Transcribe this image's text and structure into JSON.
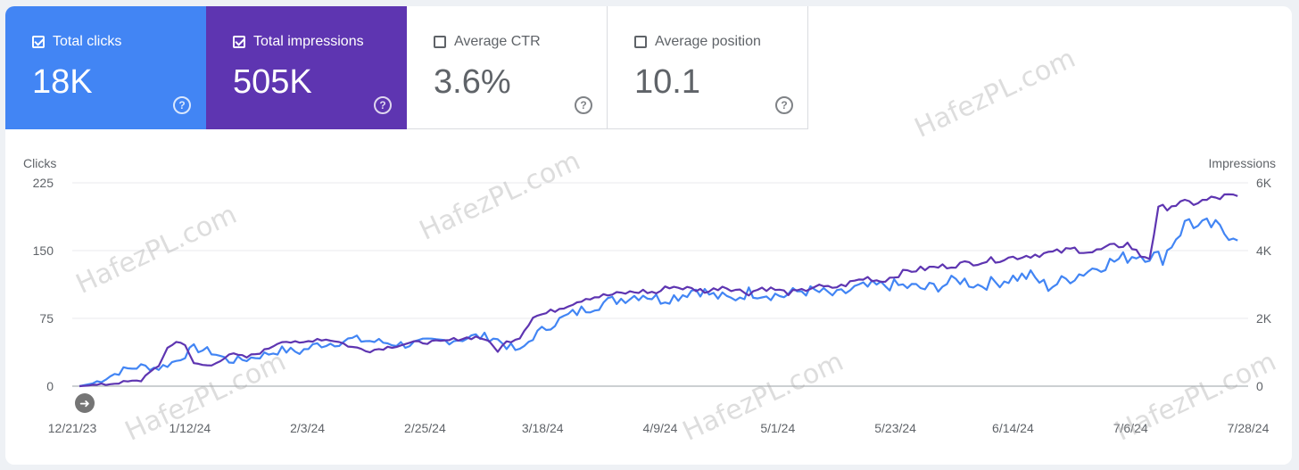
{
  "tiles": [
    {
      "label": "Total clicks",
      "value": "18K",
      "checked": true,
      "color": "#4285f4"
    },
    {
      "label": "Total impressions",
      "value": "505K",
      "checked": true,
      "color": "#5e35b1"
    },
    {
      "label": "Average CTR",
      "value": "3.6%",
      "checked": false
    },
    {
      "label": "Average position",
      "value": "10.1",
      "checked": false
    }
  ],
  "watermark": "HafezPL.com",
  "chart_data": {
    "type": "line",
    "left_axis": {
      "label": "Clicks",
      "ticks": [
        "225",
        "150",
        "75",
        "0"
      ],
      "range": [
        0,
        225
      ]
    },
    "right_axis": {
      "label": "Impressions",
      "ticks": [
        "6K",
        "4K",
        "2K",
        "0"
      ],
      "range": [
        0,
        6000
      ]
    },
    "x_ticks": [
      "12/21/23",
      "1/12/24",
      "2/3/24",
      "2/25/24",
      "3/18/24",
      "4/9/24",
      "5/1/24",
      "5/23/24",
      "6/14/24",
      "7/6/24",
      "7/28/24"
    ],
    "grid": true,
    "series": [
      {
        "name": "Total clicks",
        "axis": "left",
        "color": "#4285f4",
        "anchors": [
          [
            0,
            0
          ],
          [
            3,
            3
          ],
          [
            6,
            9
          ],
          [
            10,
            18
          ],
          [
            14,
            22
          ],
          [
            18,
            20
          ],
          [
            22,
            28
          ],
          [
            26,
            42
          ],
          [
            30,
            38
          ],
          [
            34,
            28
          ],
          [
            38,
            30
          ],
          [
            42,
            35
          ],
          [
            46,
            40
          ],
          [
            50,
            38
          ],
          [
            54,
            46
          ],
          [
            58,
            48
          ],
          [
            62,
            52
          ],
          [
            66,
            50
          ],
          [
            70,
            48
          ],
          [
            74,
            46
          ],
          [
            78,
            48
          ],
          [
            82,
            50
          ],
          [
            86,
            52
          ],
          [
            90,
            55
          ],
          [
            94,
            54
          ],
          [
            97,
            45
          ],
          [
            100,
            38
          ],
          [
            103,
            55
          ],
          [
            107,
            68
          ],
          [
            111,
            78
          ],
          [
            115,
            86
          ],
          [
            119,
            92
          ],
          [
            124,
            98
          ],
          [
            128,
            102
          ],
          [
            132,
            96
          ],
          [
            136,
            100
          ],
          [
            140,
            108
          ],
          [
            144,
            100
          ],
          [
            148,
            96
          ],
          [
            152,
            104
          ],
          [
            156,
            102
          ],
          [
            160,
            100
          ],
          [
            164,
            106
          ],
          [
            168,
            104
          ],
          [
            172,
            100
          ],
          [
            176,
            108
          ],
          [
            180,
            110
          ],
          [
            184,
            112
          ],
          [
            188,
            110
          ],
          [
            192,
            108
          ],
          [
            196,
            112
          ],
          [
            200,
            118
          ],
          [
            204,
            112
          ],
          [
            208,
            115
          ],
          [
            212,
            120
          ],
          [
            216,
            122
          ],
          [
            220,
            110
          ],
          [
            224,
            118
          ],
          [
            228,
            126
          ],
          [
            232,
            134
          ],
          [
            236,
            140
          ],
          [
            240,
            146
          ],
          [
            243,
            145
          ],
          [
            246,
            142
          ],
          [
            249,
            165
          ],
          [
            252,
            185
          ],
          [
            254,
            175
          ],
          [
            257,
            178
          ],
          [
            260,
            170
          ],
          [
            263,
            168
          ]
        ],
        "noise": 8
      },
      {
        "name": "Total impressions",
        "axis": "right",
        "color": "#5e35b1",
        "anchors": [
          [
            0,
            0
          ],
          [
            6,
            50
          ],
          [
            10,
            120
          ],
          [
            14,
            160
          ],
          [
            16,
            450
          ],
          [
            18,
            550
          ],
          [
            20,
            1150
          ],
          [
            22,
            1300
          ],
          [
            24,
            1250
          ],
          [
            26,
            650
          ],
          [
            30,
            600
          ],
          [
            34,
            950
          ],
          [
            38,
            850
          ],
          [
            42,
            1050
          ],
          [
            46,
            1350
          ],
          [
            50,
            1250
          ],
          [
            54,
            1400
          ],
          [
            58,
            1350
          ],
          [
            62,
            1150
          ],
          [
            66,
            1050
          ],
          [
            70,
            1150
          ],
          [
            74,
            1250
          ],
          [
            78,
            1300
          ],
          [
            82,
            1300
          ],
          [
            86,
            1400
          ],
          [
            90,
            1450
          ],
          [
            92,
            1400
          ],
          [
            95,
            1050
          ],
          [
            97,
            1300
          ],
          [
            100,
            1450
          ],
          [
            103,
            2050
          ],
          [
            106,
            2150
          ],
          [
            109,
            2300
          ],
          [
            112,
            2450
          ],
          [
            115,
            2600
          ],
          [
            118,
            2650
          ],
          [
            121,
            2700
          ],
          [
            124,
            2750
          ],
          [
            128,
            2800
          ],
          [
            131,
            2750
          ],
          [
            134,
            2950
          ],
          [
            137,
            2900
          ],
          [
            140,
            2850
          ],
          [
            143,
            2800
          ],
          [
            146,
            2950
          ],
          [
            149,
            2850
          ],
          [
            152,
            2750
          ],
          [
            155,
            2900
          ],
          [
            158,
            2850
          ],
          [
            161,
            2750
          ],
          [
            164,
            2800
          ],
          [
            167,
            2950
          ],
          [
            170,
            2900
          ],
          [
            173,
            2950
          ],
          [
            176,
            3100
          ],
          [
            179,
            3200
          ],
          [
            182,
            3100
          ],
          [
            185,
            3250
          ],
          [
            188,
            3400
          ],
          [
            191,
            3450
          ],
          [
            194,
            3500
          ],
          [
            197,
            3550
          ],
          [
            200,
            3600
          ],
          [
            203,
            3650
          ],
          [
            206,
            3700
          ],
          [
            209,
            3750
          ],
          [
            212,
            3800
          ],
          [
            215,
            3850
          ],
          [
            218,
            3900
          ],
          [
            222,
            3950
          ],
          [
            226,
            4050
          ],
          [
            230,
            3950
          ],
          [
            234,
            4100
          ],
          [
            238,
            4200
          ],
          [
            241,
            3850
          ],
          [
            243,
            3800
          ],
          [
            245,
            5200
          ],
          [
            248,
            5350
          ],
          [
            252,
            5400
          ],
          [
            255,
            5450
          ],
          [
            258,
            5550
          ],
          [
            261,
            5600
          ],
          [
            263,
            5550
          ]
        ],
        "noise": 90
      }
    ]
  }
}
